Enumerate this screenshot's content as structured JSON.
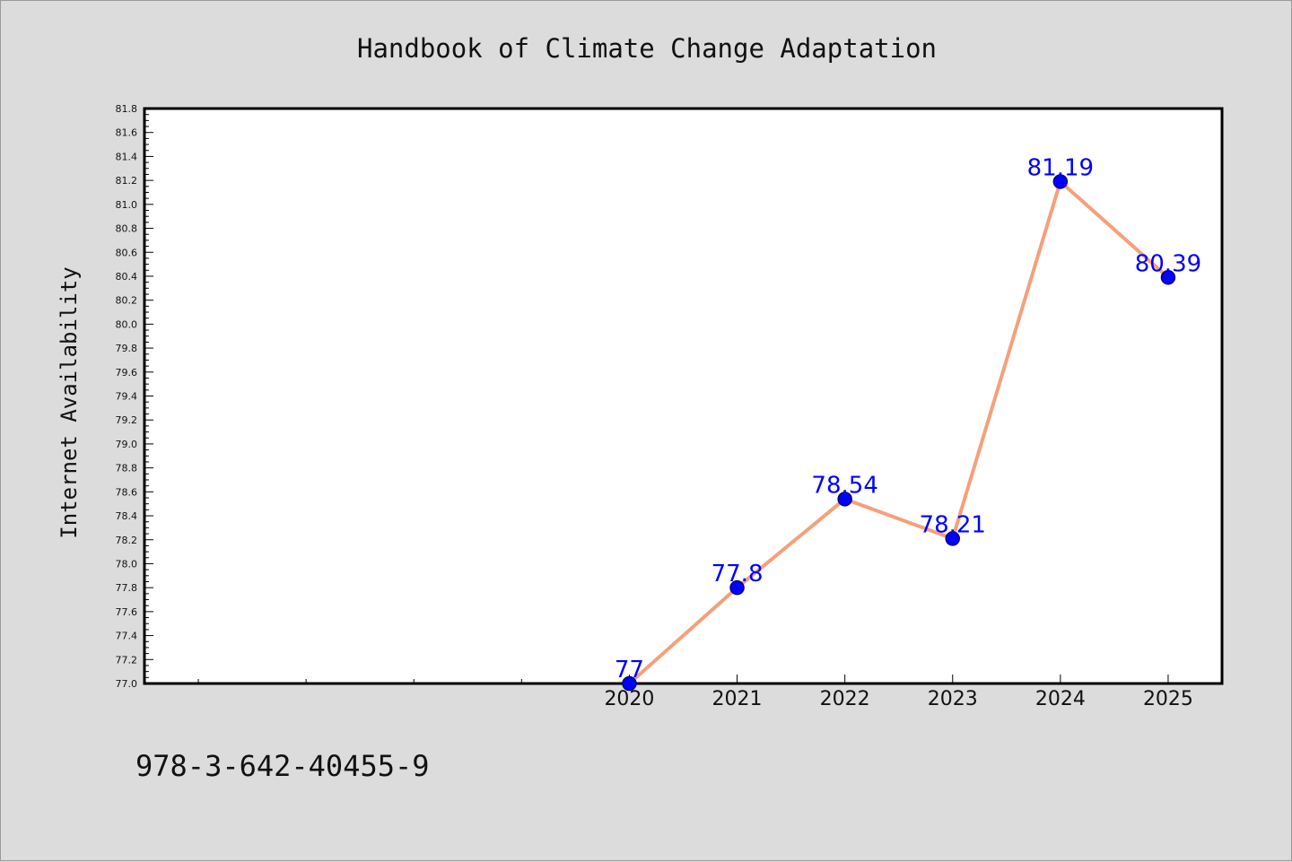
{
  "chart_data": {
    "type": "line",
    "title": "Handbook of Climate Change Adaptation",
    "xlabel": "",
    "ylabel": "Internet Availability",
    "x": [
      "2020",
      "2021",
      "2022",
      "2023",
      "2024",
      "2025"
    ],
    "series": [
      {
        "values": [
          77,
          77.8,
          78.54,
          78.21,
          81.19,
          80.39
        ]
      }
    ],
    "data_labels": [
      "77",
      "77.8",
      "78.54",
      "78.21",
      "81.19",
      "80.39"
    ],
    "ylim": [
      77.0,
      81.8
    ],
    "xlim": [
      2015.5,
      2025.5
    ],
    "y_ticks": [
      "77.0",
      "77.2",
      "77.4",
      "77.6",
      "77.8",
      "78.0",
      "78.2",
      "78.4",
      "78.6",
      "78.8",
      "79.0",
      "79.2",
      "79.4",
      "79.6",
      "79.8",
      "80.0",
      "80.2",
      "80.4",
      "80.6",
      "80.8",
      "81.0",
      "81.2",
      "81.4",
      "81.6",
      "81.8"
    ],
    "grid": false,
    "legend": "none",
    "colors": {
      "line": "#f5a07a",
      "marker": "#0000ff",
      "marker_edge": "#000080",
      "data_label": "#0000ff",
      "plot_bg": "#ffffff",
      "figure_bg": "#dcdcdc"
    }
  },
  "footer": {
    "isbn": "978-3-642-40455-9"
  }
}
